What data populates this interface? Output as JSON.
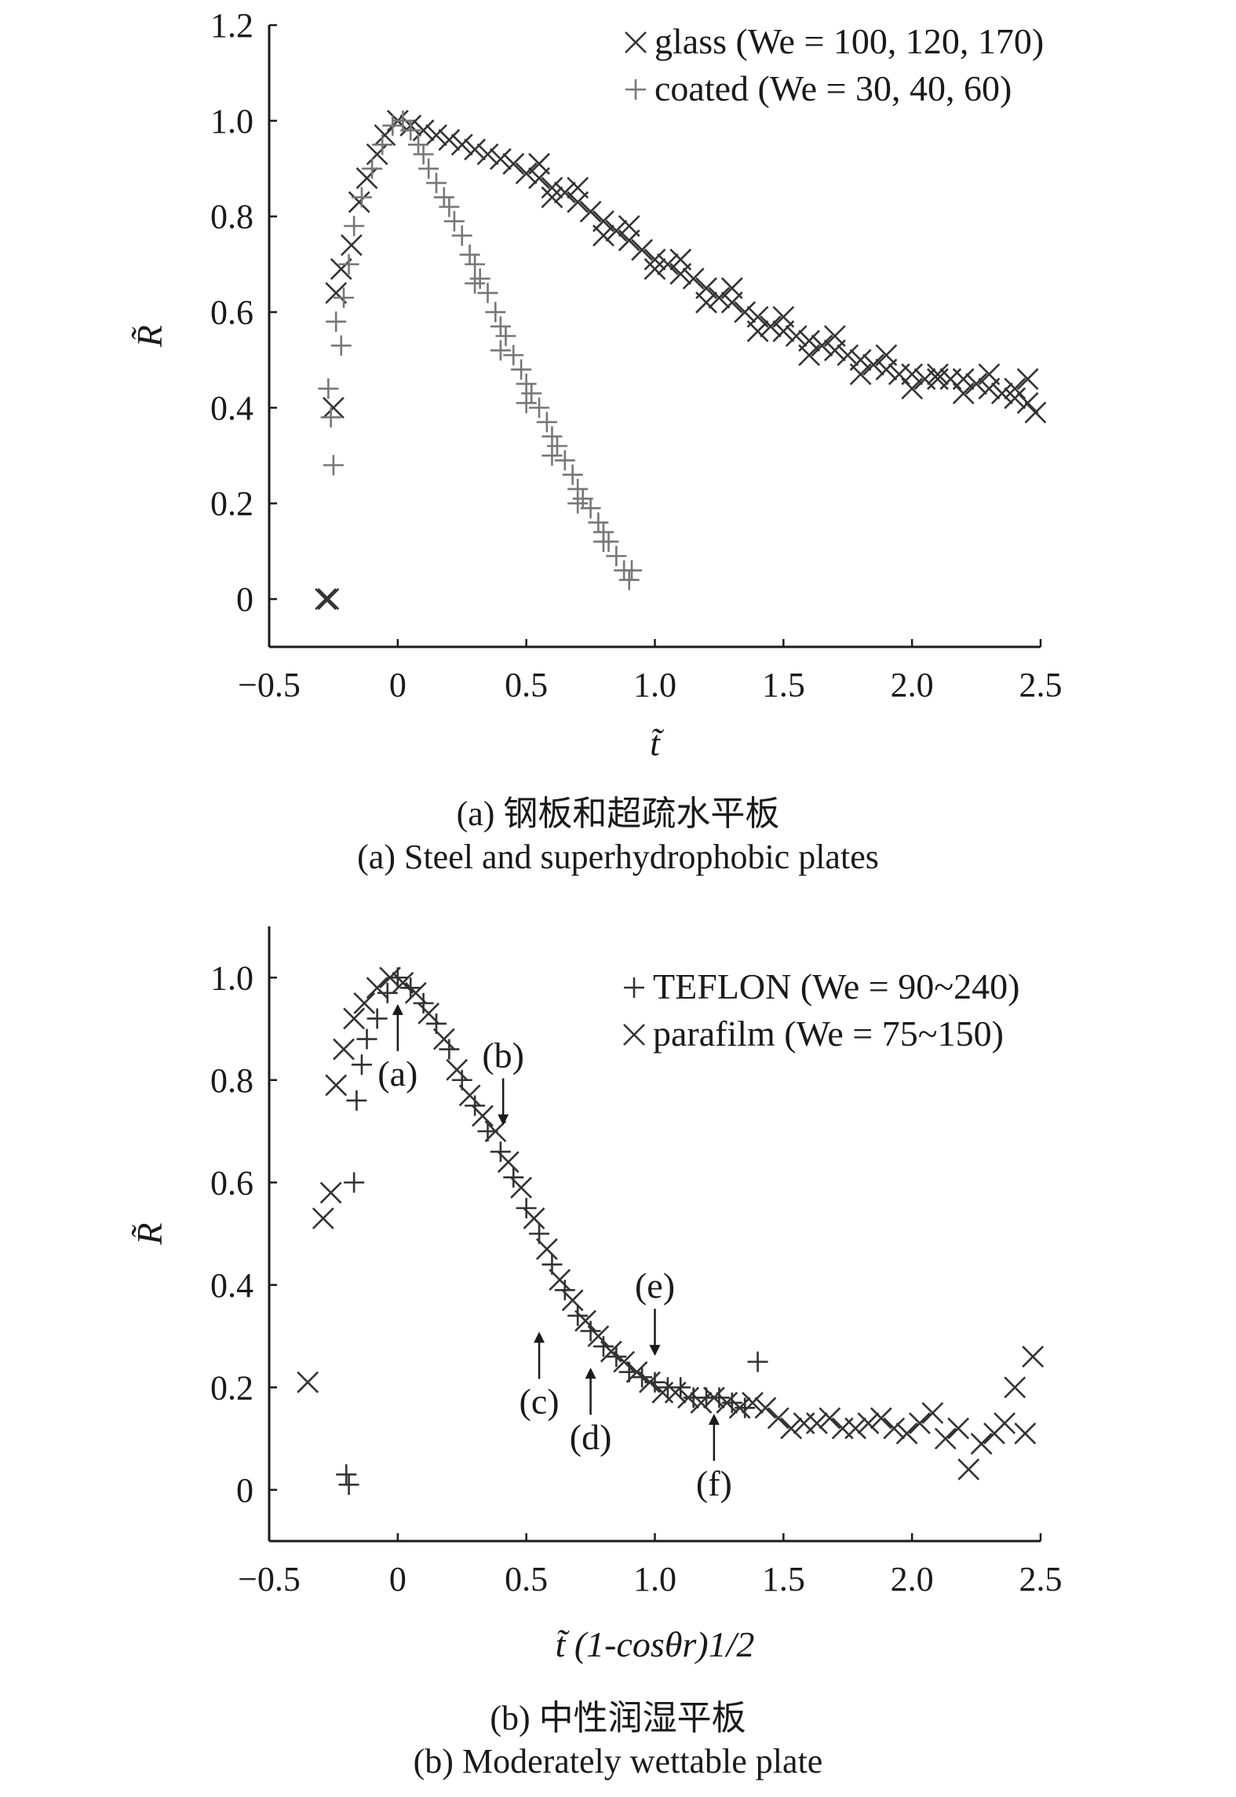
{
  "chart_data": [
    {
      "type": "scatter",
      "panel": "a",
      "xlabel": "t̃",
      "ylabel": "R̃",
      "xlim": [
        -0.5,
        2.5
      ],
      "ylim": [
        -0.1,
        1.2
      ],
      "xticks": [
        "−0.5",
        "0",
        "0.5",
        "1.0",
        "1.5",
        "2.0",
        "2.5"
      ],
      "xtick_values": [
        -0.5,
        0,
        0.5,
        1.0,
        1.5,
        2.0,
        2.5
      ],
      "yticks": [
        "0",
        "0.2",
        "0.4",
        "0.6",
        "0.8",
        "1.0",
        "1.2"
      ],
      "ytick_values": [
        0,
        0.2,
        0.4,
        0.6,
        0.8,
        1.0,
        1.2
      ],
      "legend_position": "top-right",
      "caption_cn": "(a) 钢板和超疏水平板",
      "caption_en": "(a) Steel and superhydrophobic plates",
      "series": [
        {
          "name": "glass (We = 100, 120, 170)",
          "marker": "x",
          "color": "#333333",
          "points": [
            [
              -0.28,
              0.0
            ],
            [
              -0.27,
              0.0
            ],
            [
              -0.25,
              0.4
            ],
            [
              -0.24,
              0.64
            ],
            [
              -0.22,
              0.69
            ],
            [
              -0.18,
              0.74
            ],
            [
              -0.15,
              0.83
            ],
            [
              -0.12,
              0.88
            ],
            [
              -0.08,
              0.93
            ],
            [
              -0.05,
              0.97
            ],
            [
              0.0,
              1.0
            ],
            [
              0.05,
              0.99
            ],
            [
              0.1,
              0.98
            ],
            [
              0.15,
              0.97
            ],
            [
              0.2,
              0.96
            ],
            [
              0.25,
              0.95
            ],
            [
              0.3,
              0.94
            ],
            [
              0.35,
              0.93
            ],
            [
              0.4,
              0.92
            ],
            [
              0.45,
              0.91
            ],
            [
              0.5,
              0.89
            ],
            [
              0.55,
              0.88
            ],
            [
              0.6,
              0.86
            ],
            [
              0.65,
              0.85
            ],
            [
              0.7,
              0.83
            ],
            [
              0.75,
              0.81
            ],
            [
              0.8,
              0.79
            ],
            [
              0.85,
              0.77
            ],
            [
              0.9,
              0.75
            ],
            [
              0.95,
              0.73
            ],
            [
              1.0,
              0.71
            ],
            [
              1.05,
              0.7
            ],
            [
              1.1,
              0.68
            ],
            [
              1.15,
              0.67
            ],
            [
              1.2,
              0.65
            ],
            [
              1.25,
              0.63
            ],
            [
              1.3,
              0.62
            ],
            [
              1.35,
              0.6
            ],
            [
              1.4,
              0.59
            ],
            [
              1.45,
              0.57
            ],
            [
              1.5,
              0.56
            ],
            [
              1.55,
              0.55
            ],
            [
              1.6,
              0.54
            ],
            [
              1.65,
              0.53
            ],
            [
              1.7,
              0.52
            ],
            [
              1.75,
              0.51
            ],
            [
              1.8,
              0.5
            ],
            [
              1.85,
              0.49
            ],
            [
              1.9,
              0.48
            ],
            [
              1.95,
              0.47
            ],
            [
              2.0,
              0.47
            ],
            [
              2.05,
              0.46
            ],
            [
              2.1,
              0.46
            ],
            [
              2.15,
              0.46
            ],
            [
              2.2,
              0.46
            ],
            [
              2.25,
              0.45
            ],
            [
              2.3,
              0.44
            ],
            [
              2.35,
              0.43
            ],
            [
              2.4,
              0.42
            ],
            [
              2.45,
              0.41
            ],
            [
              2.48,
              0.39
            ],
            [
              0.55,
              0.91
            ],
            [
              0.7,
              0.86
            ],
            [
              0.9,
              0.78
            ],
            [
              1.1,
              0.71
            ],
            [
              1.3,
              0.65
            ],
            [
              1.5,
              0.59
            ],
            [
              1.7,
              0.55
            ],
            [
              1.9,
              0.51
            ],
            [
              2.1,
              0.47
            ],
            [
              2.3,
              0.47
            ],
            [
              2.45,
              0.46
            ],
            [
              0.6,
              0.84
            ],
            [
              0.8,
              0.76
            ],
            [
              1.0,
              0.69
            ],
            [
              1.2,
              0.62
            ],
            [
              1.4,
              0.56
            ],
            [
              1.6,
              0.51
            ],
            [
              1.8,
              0.47
            ],
            [
              2.0,
              0.44
            ],
            [
              2.2,
              0.43
            ],
            [
              2.4,
              0.44
            ]
          ]
        },
        {
          "name": "coated (We = 30, 40, 60)",
          "marker": "+",
          "color": "#777777",
          "points": [
            [
              -0.27,
              0.44
            ],
            [
              -0.26,
              0.38
            ],
            [
              -0.25,
              0.28
            ],
            [
              -0.24,
              0.58
            ],
            [
              -0.22,
              0.53
            ],
            [
              -0.21,
              0.63
            ],
            [
              -0.19,
              0.7
            ],
            [
              -0.17,
              0.78
            ],
            [
              -0.14,
              0.84
            ],
            [
              -0.1,
              0.9
            ],
            [
              -0.06,
              0.95
            ],
            [
              -0.02,
              0.99
            ],
            [
              0.02,
              1.0
            ],
            [
              0.05,
              0.98
            ],
            [
              0.08,
              0.95
            ],
            [
              0.1,
              0.93
            ],
            [
              0.12,
              0.9
            ],
            [
              0.15,
              0.87
            ],
            [
              0.18,
              0.84
            ],
            [
              0.2,
              0.82
            ],
            [
              0.22,
              0.79
            ],
            [
              0.25,
              0.76
            ],
            [
              0.28,
              0.72
            ],
            [
              0.3,
              0.7
            ],
            [
              0.32,
              0.67
            ],
            [
              0.35,
              0.64
            ],
            [
              0.38,
              0.6
            ],
            [
              0.4,
              0.57
            ],
            [
              0.42,
              0.55
            ],
            [
              0.45,
              0.51
            ],
            [
              0.48,
              0.48
            ],
            [
              0.5,
              0.45
            ],
            [
              0.52,
              0.43
            ],
            [
              0.55,
              0.4
            ],
            [
              0.58,
              0.37
            ],
            [
              0.6,
              0.34
            ],
            [
              0.62,
              0.32
            ],
            [
              0.65,
              0.29
            ],
            [
              0.68,
              0.26
            ],
            [
              0.7,
              0.23
            ],
            [
              0.72,
              0.21
            ],
            [
              0.75,
              0.19
            ],
            [
              0.78,
              0.16
            ],
            [
              0.8,
              0.14
            ],
            [
              0.82,
              0.12
            ],
            [
              0.85,
              0.09
            ],
            [
              0.88,
              0.06
            ],
            [
              0.9,
              0.04
            ],
            [
              0.91,
              0.06
            ],
            [
              0.3,
              0.66
            ],
            [
              0.4,
              0.52
            ],
            [
              0.5,
              0.41
            ],
            [
              0.6,
              0.3
            ],
            [
              0.7,
              0.2
            ],
            [
              0.8,
              0.12
            ]
          ]
        }
      ],
      "annotations": []
    },
    {
      "type": "scatter",
      "panel": "b",
      "xlabel": "t̃ (1-cosθr)1/2",
      "ylabel": "R̃",
      "xlim": [
        -0.5,
        2.5
      ],
      "ylim": [
        -0.1,
        1.1
      ],
      "xticks": [
        "−0.5",
        "0",
        "0.5",
        "1.0",
        "1.5",
        "2.0",
        "2.5"
      ],
      "xtick_values": [
        -0.5,
        0,
        0.5,
        1.0,
        1.5,
        2.0,
        2.5
      ],
      "yticks": [
        "0",
        "0.2",
        "0.4",
        "0.6",
        "0.8",
        "1.0"
      ],
      "ytick_values": [
        0,
        0.2,
        0.4,
        0.6,
        0.8,
        1.0
      ],
      "legend_position": "top-right",
      "caption_cn": "(b) 中性润湿平板",
      "caption_en": "(b) Moderately wettable plate",
      "series": [
        {
          "name": "TEFLON (We = 90~240)",
          "marker": "+",
          "color": "#333333",
          "points": [
            [
              -0.2,
              0.03
            ],
            [
              -0.19,
              0.01
            ],
            [
              -0.17,
              0.6
            ],
            [
              -0.16,
              0.76
            ],
            [
              -0.14,
              0.83
            ],
            [
              -0.12,
              0.88
            ],
            [
              -0.08,
              0.92
            ],
            [
              -0.04,
              0.97
            ],
            [
              0.0,
              1.0
            ],
            [
              0.05,
              0.98
            ],
            [
              0.1,
              0.95
            ],
            [
              0.15,
              0.91
            ],
            [
              0.2,
              0.86
            ],
            [
              0.25,
              0.8
            ],
            [
              0.3,
              0.75
            ],
            [
              0.35,
              0.7
            ],
            [
              0.4,
              0.66
            ],
            [
              0.45,
              0.61
            ],
            [
              0.5,
              0.55
            ],
            [
              0.55,
              0.5
            ],
            [
              0.6,
              0.44
            ],
            [
              0.65,
              0.39
            ],
            [
              0.7,
              0.34
            ],
            [
              0.75,
              0.31
            ],
            [
              0.8,
              0.28
            ],
            [
              0.85,
              0.26
            ],
            [
              0.9,
              0.23
            ],
            [
              0.95,
              0.22
            ],
            [
              1.0,
              0.21
            ],
            [
              1.05,
              0.2
            ],
            [
              1.1,
              0.2
            ],
            [
              1.15,
              0.18
            ],
            [
              1.2,
              0.18
            ],
            [
              1.25,
              0.18
            ],
            [
              1.3,
              0.17
            ],
            [
              1.35,
              0.16
            ],
            [
              1.4,
              0.25
            ]
          ]
        },
        {
          "name": "parafilm (We = 75~150)",
          "marker": "x",
          "color": "#333333",
          "points": [
            [
              -0.35,
              0.21
            ],
            [
              -0.29,
              0.53
            ],
            [
              -0.26,
              0.58
            ],
            [
              -0.24,
              0.79
            ],
            [
              -0.21,
              0.86
            ],
            [
              -0.17,
              0.92
            ],
            [
              -0.13,
              0.95
            ],
            [
              -0.08,
              0.98
            ],
            [
              -0.03,
              1.0
            ],
            [
              0.02,
              0.99
            ],
            [
              0.07,
              0.97
            ],
            [
              0.12,
              0.93
            ],
            [
              0.18,
              0.88
            ],
            [
              0.23,
              0.82
            ],
            [
              0.28,
              0.77
            ],
            [
              0.33,
              0.73
            ],
            [
              0.38,
              0.7
            ],
            [
              0.43,
              0.64
            ],
            [
              0.48,
              0.59
            ],
            [
              0.53,
              0.53
            ],
            [
              0.58,
              0.47
            ],
            [
              0.63,
              0.41
            ],
            [
              0.68,
              0.37
            ],
            [
              0.73,
              0.33
            ],
            [
              0.78,
              0.3
            ],
            [
              0.83,
              0.27
            ],
            [
              0.88,
              0.25
            ],
            [
              0.93,
              0.23
            ],
            [
              0.98,
              0.21
            ],
            [
              1.03,
              0.19
            ],
            [
              1.08,
              0.19
            ],
            [
              1.13,
              0.18
            ],
            [
              1.18,
              0.17
            ],
            [
              1.23,
              0.18
            ],
            [
              1.28,
              0.17
            ],
            [
              1.33,
              0.16
            ],
            [
              1.38,
              0.17
            ],
            [
              1.43,
              0.16
            ],
            [
              1.48,
              0.14
            ],
            [
              1.53,
              0.12
            ],
            [
              1.58,
              0.13
            ],
            [
              1.63,
              0.13
            ],
            [
              1.68,
              0.14
            ],
            [
              1.73,
              0.12
            ],
            [
              1.78,
              0.12
            ],
            [
              1.83,
              0.13
            ],
            [
              1.88,
              0.14
            ],
            [
              1.93,
              0.12
            ],
            [
              1.98,
              0.11
            ],
            [
              2.03,
              0.13
            ],
            [
              2.08,
              0.15
            ],
            [
              2.13,
              0.1
            ],
            [
              2.18,
              0.12
            ],
            [
              2.22,
              0.04
            ],
            [
              2.27,
              0.09
            ],
            [
              2.32,
              0.11
            ],
            [
              2.36,
              0.13
            ],
            [
              2.4,
              0.2
            ],
            [
              2.44,
              0.11
            ],
            [
              2.47,
              0.26
            ]
          ]
        }
      ],
      "annotations": [
        {
          "label": "(a)",
          "x": 0.0,
          "y": 0.97,
          "arrow": "up"
        },
        {
          "label": "(b)",
          "x": 0.41,
          "y": 0.69,
          "arrow": "down"
        },
        {
          "label": "(c)",
          "x": 0.55,
          "y": 0.33,
          "arrow": "up"
        },
        {
          "label": "(d)",
          "x": 0.75,
          "y": 0.26,
          "arrow": "up"
        },
        {
          "label": "(e)",
          "x": 1.0,
          "y": 0.24,
          "arrow": "down"
        },
        {
          "label": "(f)",
          "x": 1.23,
          "y": 0.17,
          "arrow": "up"
        }
      ]
    }
  ]
}
